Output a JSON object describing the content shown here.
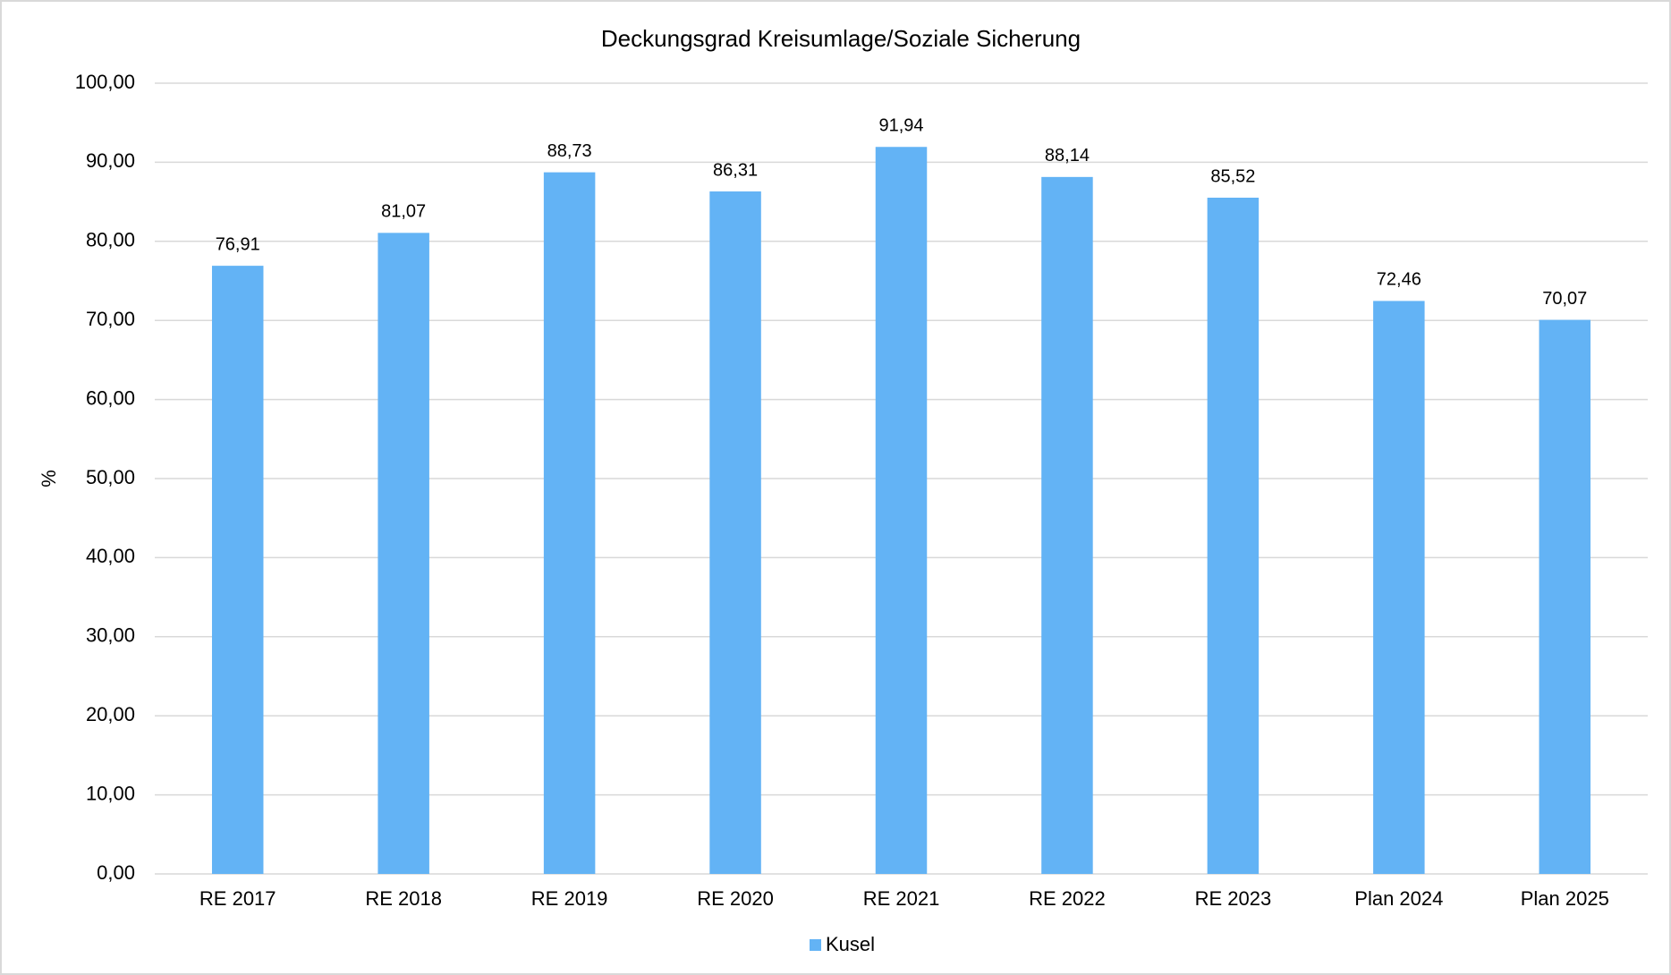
{
  "chart_data": {
    "type": "bar",
    "title": "Deckungsgrad Kreisumlage/Soziale Sicherung",
    "y_label": "%",
    "categories": [
      "RE 2017",
      "RE 2018",
      "RE 2019",
      "RE 2020",
      "RE 2021",
      "RE 2022",
      "RE 2023",
      "Plan 2024",
      "Plan 2025"
    ],
    "series": [
      {
        "name": "Kusel",
        "color": "#63b3f5",
        "values": [
          76.91,
          81.07,
          88.73,
          86.31,
          91.94,
          88.14,
          85.52,
          72.46,
          70.07
        ],
        "value_labels": [
          "76,91",
          "81,07",
          "88,73",
          "86,31",
          "91,94",
          "88,14",
          "85,52",
          "72,46",
          "70,07"
        ]
      }
    ],
    "ylim": [
      0,
      100
    ],
    "yticks": [
      {
        "value": 0,
        "label": "0,00"
      },
      {
        "value": 10,
        "label": "10,00"
      },
      {
        "value": 20,
        "label": "20,00"
      },
      {
        "value": 30,
        "label": "30,00"
      },
      {
        "value": 40,
        "label": "40,00"
      },
      {
        "value": 50,
        "label": "50,00"
      },
      {
        "value": 60,
        "label": "60,00"
      },
      {
        "value": 70,
        "label": "70,00"
      },
      {
        "value": 80,
        "label": "80,00"
      },
      {
        "value": 90,
        "label": "90,00"
      },
      {
        "value": 100,
        "label": "100,00"
      }
    ],
    "grid": true,
    "legend": "bottom"
  }
}
